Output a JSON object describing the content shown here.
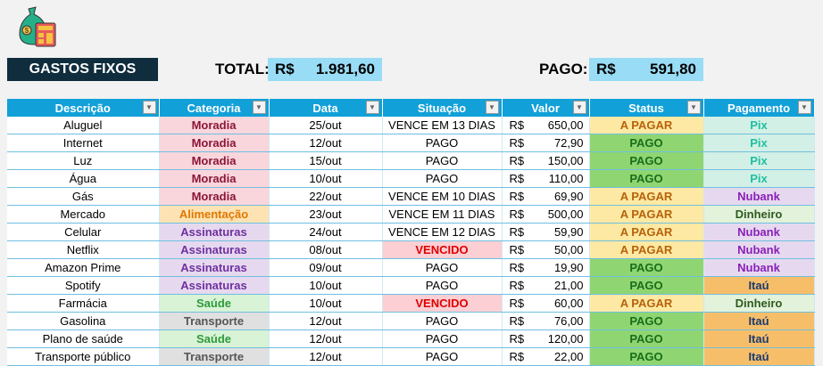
{
  "header": {
    "title": "GASTOS FIXOS",
    "total_label": "TOTAL:",
    "total_currency": "R$",
    "total_value": "1.981,60",
    "pago_label": "PAGO:",
    "pago_currency": "R$",
    "pago_value": "591,80",
    "logo_icon": "money-bag-calculator-icon"
  },
  "columns": [
    "Descrição",
    "Categoria",
    "Data",
    "Situação",
    "Valor",
    "Status",
    "Pagamento"
  ],
  "currency": "R$",
  "colors": {
    "categoria": {
      "Moradia": [
        "#f9d6dc",
        "#8b1538"
      ],
      "Alimentação": [
        "#fde3b3",
        "#e07800"
      ],
      "Assinaturas": [
        "#e6d9ef",
        "#7030a0"
      ],
      "Saúde": [
        "#d8f3d6",
        "#2e9a3a"
      ],
      "Transporte": [
        "#e0e0e0",
        "#555555"
      ]
    },
    "status": {
      "A PAGAR": [
        "#fde9a3",
        "#b8620a"
      ],
      "PAGO": [
        "#8fd672",
        "#1a6e1a"
      ]
    },
    "pagamento": {
      "Pix": [
        "#d3f0e6",
        "#1fbfa0"
      ],
      "Nubank": [
        "#e6d9ef",
        "#8a1fb8"
      ],
      "Dinheiro": [
        "#e3f2da",
        "#2d5a1f"
      ],
      "Itaú": [
        "#f7be6a",
        "#1a3a6e"
      ]
    },
    "vencido": [
      "#fccfd4",
      "#e00000"
    ]
  },
  "rows": [
    [
      "Aluguel",
      "Moradia",
      "25/out",
      "VENCE EM 13 DIAS",
      "650,00",
      "A PAGAR",
      "Pix"
    ],
    [
      "Internet",
      "Moradia",
      "12/out",
      "PAGO",
      "72,90",
      "PAGO",
      "Pix"
    ],
    [
      "Luz",
      "Moradia",
      "15/out",
      "PAGO",
      "150,00",
      "PAGO",
      "Pix"
    ],
    [
      "Água",
      "Moradia",
      "10/out",
      "PAGO",
      "110,00",
      "PAGO",
      "Pix"
    ],
    [
      "Gás",
      "Moradia",
      "22/out",
      "VENCE EM 10 DIAS",
      "69,90",
      "A PAGAR",
      "Nubank"
    ],
    [
      "Mercado",
      "Alimentação",
      "23/out",
      "VENCE EM 11 DIAS",
      "500,00",
      "A PAGAR",
      "Dinheiro"
    ],
    [
      "Celular",
      "Assinaturas",
      "24/out",
      "VENCE EM 12 DIAS",
      "59,90",
      "A PAGAR",
      "Nubank"
    ],
    [
      "Netflix",
      "Assinaturas",
      "08/out",
      "VENCIDO",
      "50,00",
      "A PAGAR",
      "Nubank"
    ],
    [
      "Amazon Prime",
      "Assinaturas",
      "09/out",
      "PAGO",
      "19,90",
      "PAGO",
      "Nubank"
    ],
    [
      "Spotify",
      "Assinaturas",
      "10/out",
      "PAGO",
      "21,00",
      "PAGO",
      "Itaú"
    ],
    [
      "Farmácia",
      "Saúde",
      "10/out",
      "VENCIDO",
      "60,00",
      "A PAGAR",
      "Dinheiro"
    ],
    [
      "Gasolina",
      "Transporte",
      "12/out",
      "PAGO",
      "76,00",
      "PAGO",
      "Itaú"
    ],
    [
      "Plano de saúde",
      "Saúde",
      "12/out",
      "PAGO",
      "120,00",
      "PAGO",
      "Itaú"
    ],
    [
      "Transporte público",
      "Transporte",
      "12/out",
      "PAGO",
      "22,00",
      "PAGO",
      "Itaú"
    ]
  ]
}
